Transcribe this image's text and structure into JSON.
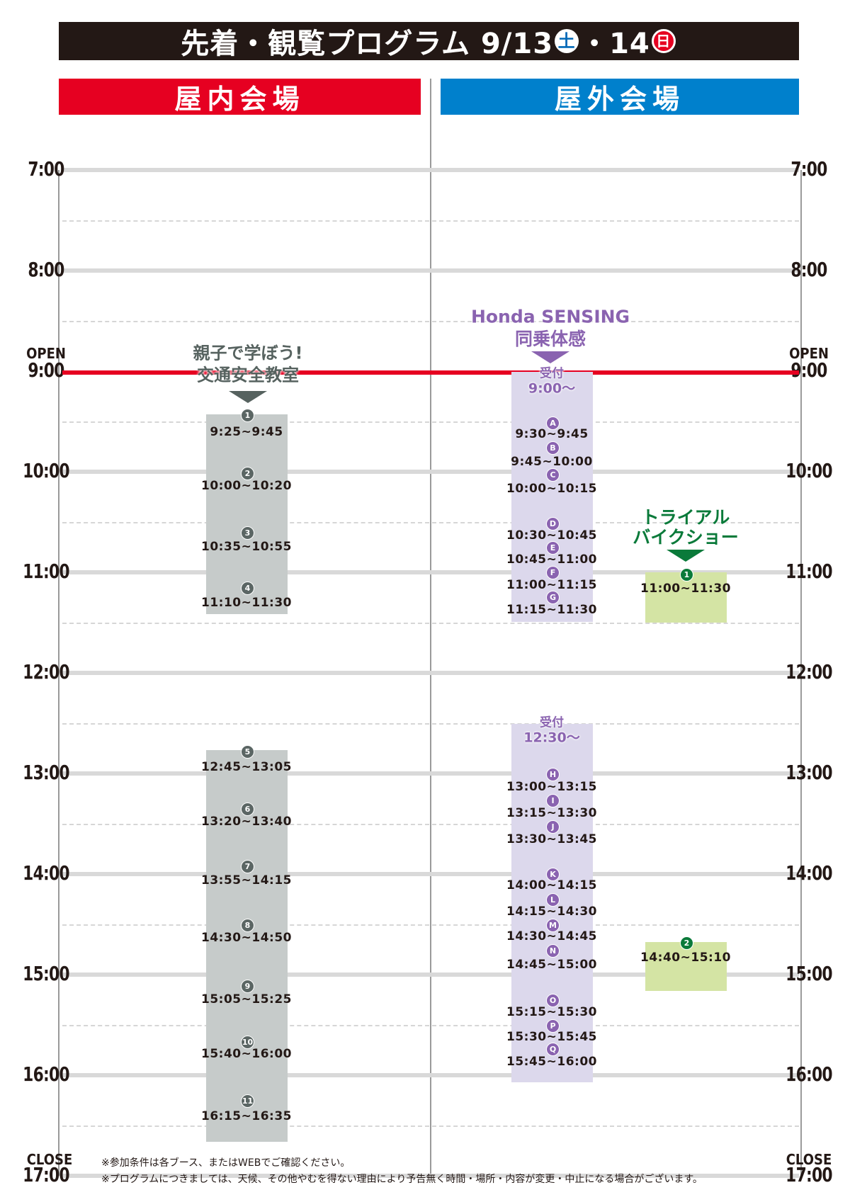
{
  "title": {
    "text": "先着・観覧プログラム 9/13",
    "sat": "土",
    "sep": "・14",
    "sun": "日"
  },
  "venues": {
    "indoor": "屋内会場",
    "outdoor": "屋外会場"
  },
  "hours": [
    "7:00",
    "8:00",
    "9:00",
    "10:00",
    "11:00",
    "12:00",
    "13:00",
    "14:00",
    "15:00",
    "16:00",
    "17:00"
  ],
  "open_label": "OPEN",
  "close_label": "CLOSE",
  "colors": {
    "title_bg": "#231815",
    "indoor": "#e60021",
    "outdoor": "#0080cc",
    "open_line": "#e60021",
    "indoor_block": "#c6cbca",
    "sensing_block": "#dcd8ec",
    "trial_block": "#d4e4a4",
    "sensing_text": "#8a63b0",
    "trial_text": "#0a7a3a",
    "indoor_text": "#56625f"
  },
  "indoor_program": {
    "title_line1": "親子で学ぼう!",
    "title_line2": "交通安全教室",
    "sessions": [
      {
        "no": "1",
        "time": "9:25~9:45"
      },
      {
        "no": "2",
        "time": "10:00~10:20"
      },
      {
        "no": "3",
        "time": "10:35~10:55"
      },
      {
        "no": "4",
        "time": "11:10~11:30"
      },
      {
        "no": "5",
        "time": "12:45~13:05"
      },
      {
        "no": "6",
        "time": "13:20~13:40"
      },
      {
        "no": "7",
        "time": "13:55~14:15"
      },
      {
        "no": "8",
        "time": "14:30~14:50"
      },
      {
        "no": "9",
        "time": "15:05~15:25"
      },
      {
        "no": "10",
        "time": "15:40~16:00"
      },
      {
        "no": "11",
        "time": "16:15~16:35"
      }
    ]
  },
  "sensing_program": {
    "title_line1": "Honda SENSING",
    "title_line2": "同乗体感",
    "reception": [
      {
        "label": "受付",
        "time": "9:00〜"
      },
      {
        "label": "受付",
        "time": "12:30〜"
      }
    ],
    "sessions": [
      {
        "no": "A",
        "time": "9:30~9:45"
      },
      {
        "no": "B",
        "time": "9:45~10:00"
      },
      {
        "no": "C",
        "time": "10:00~10:15"
      },
      {
        "no": "D",
        "time": "10:30~10:45"
      },
      {
        "no": "E",
        "time": "10:45~11:00"
      },
      {
        "no": "F",
        "time": "11:00~11:15"
      },
      {
        "no": "G",
        "time": "11:15~11:30"
      },
      {
        "no": "H",
        "time": "13:00~13:15"
      },
      {
        "no": "I",
        "time": "13:15~13:30"
      },
      {
        "no": "J",
        "time": "13:30~13:45"
      },
      {
        "no": "K",
        "time": "14:00~14:15"
      },
      {
        "no": "L",
        "time": "14:15~14:30"
      },
      {
        "no": "M",
        "time": "14:30~14:45"
      },
      {
        "no": "N",
        "time": "14:45~15:00"
      },
      {
        "no": "O",
        "time": "15:15~15:30"
      },
      {
        "no": "P",
        "time": "15:30~15:45"
      },
      {
        "no": "Q",
        "time": "15:45~16:00"
      }
    ]
  },
  "trial_program": {
    "title_line1": "トライアル",
    "title_line2": "バイクショー",
    "sessions": [
      {
        "no": "1",
        "time": "11:00~11:30"
      },
      {
        "no": "2",
        "time": "14:40~15:10"
      }
    ]
  },
  "notes": [
    "※参加条件は各ブース、またはWEBでご確認ください。",
    "※プログラムにつきましては、天候、その他やむを得ない理由により予告無く時間・場所・内容が変更・中止になる場合がございます。"
  ]
}
